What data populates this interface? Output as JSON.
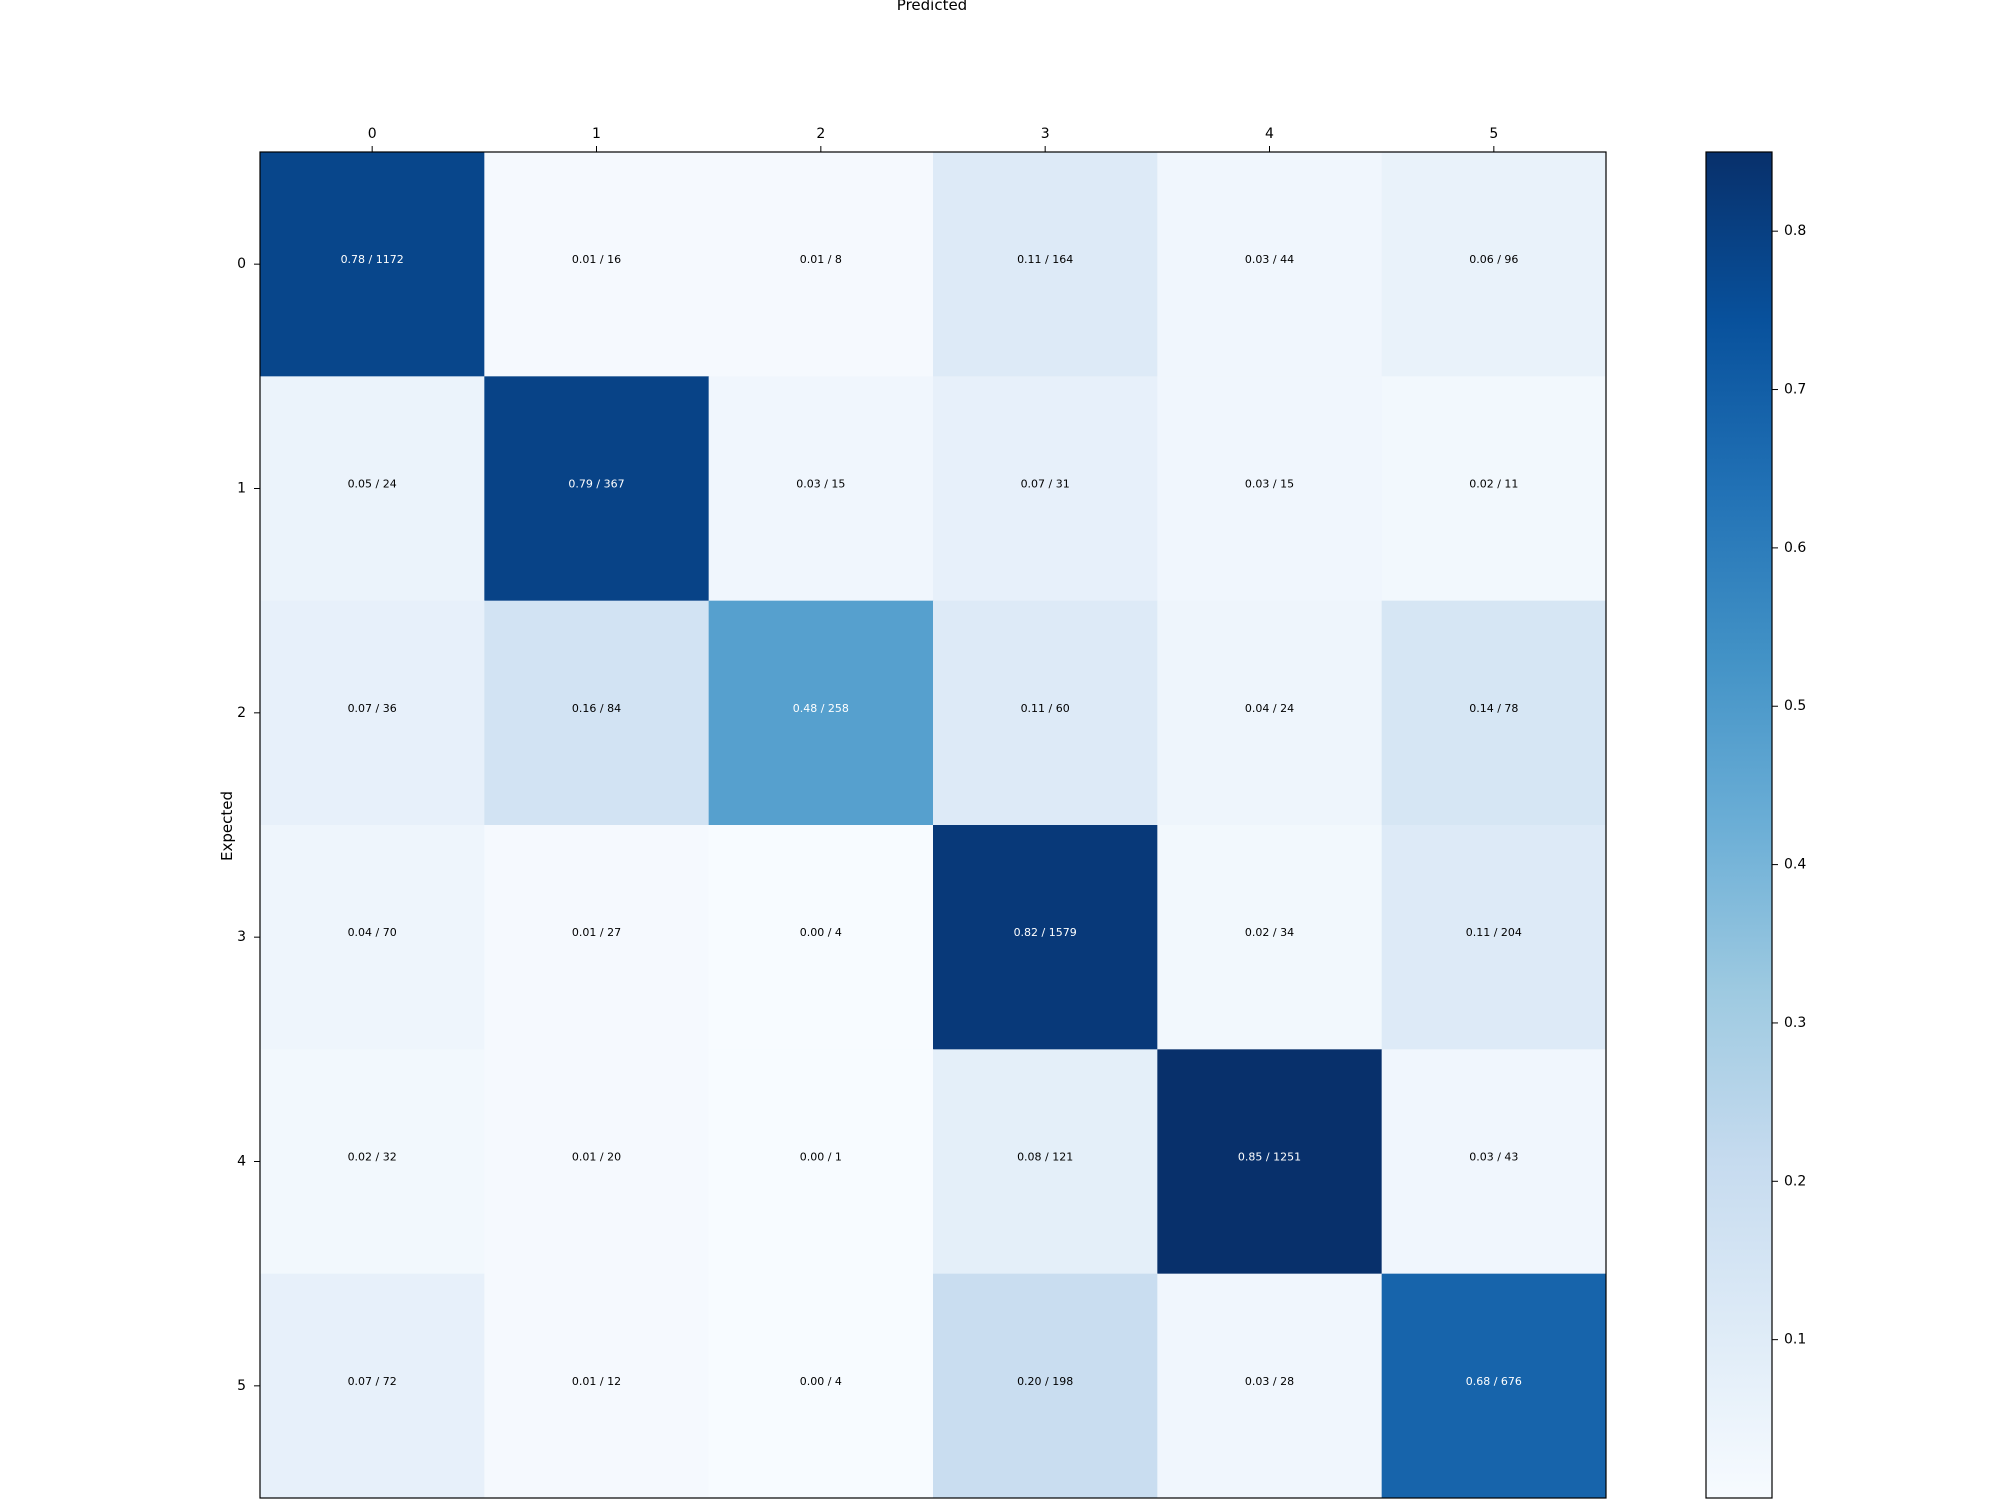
{
  "chart_data": {
    "type": "heatmap",
    "title": "",
    "xlabel": "Predicted",
    "ylabel": "Expected",
    "x_categories": [
      "0",
      "1",
      "2",
      "3",
      "4",
      "5"
    ],
    "y_categories": [
      "0",
      "1",
      "2",
      "3",
      "4",
      "5"
    ],
    "x_axis_position": "top",
    "cells": [
      [
        {
          "v": 0.78,
          "label": "0.78 / 1172"
        },
        {
          "v": 0.01,
          "label": "0.01 / 16"
        },
        {
          "v": 0.01,
          "label": "0.01 / 8"
        },
        {
          "v": 0.11,
          "label": "0.11 / 164"
        },
        {
          "v": 0.03,
          "label": "0.03 / 44"
        },
        {
          "v": 0.06,
          "label": "0.06 / 96"
        }
      ],
      [
        {
          "v": 0.05,
          "label": "0.05 / 24"
        },
        {
          "v": 0.79,
          "label": "0.79 / 367"
        },
        {
          "v": 0.03,
          "label": "0.03 / 15"
        },
        {
          "v": 0.07,
          "label": "0.07 / 31"
        },
        {
          "v": 0.03,
          "label": "0.03 / 15"
        },
        {
          "v": 0.02,
          "label": "0.02 / 11"
        }
      ],
      [
        {
          "v": 0.07,
          "label": "0.07 / 36"
        },
        {
          "v": 0.16,
          "label": "0.16 / 84"
        },
        {
          "v": 0.48,
          "label": "0.48 / 258"
        },
        {
          "v": 0.11,
          "label": "0.11 / 60"
        },
        {
          "v": 0.04,
          "label": "0.04 / 24"
        },
        {
          "v": 0.14,
          "label": "0.14 / 78"
        }
      ],
      [
        {
          "v": 0.04,
          "label": "0.04 / 70"
        },
        {
          "v": 0.01,
          "label": "0.01 / 27"
        },
        {
          "v": 0.0,
          "label": "0.00 / 4"
        },
        {
          "v": 0.82,
          "label": "0.82 / 1579"
        },
        {
          "v": 0.02,
          "label": "0.02 / 34"
        },
        {
          "v": 0.11,
          "label": "0.11 / 204"
        }
      ],
      [
        {
          "v": 0.02,
          "label": "0.02 / 32"
        },
        {
          "v": 0.01,
          "label": "0.01 / 20"
        },
        {
          "v": 0.0,
          "label": "0.00 / 1"
        },
        {
          "v": 0.08,
          "label": "0.08 / 121"
        },
        {
          "v": 0.85,
          "label": "0.85 / 1251"
        },
        {
          "v": 0.03,
          "label": "0.03 / 43"
        }
      ],
      [
        {
          "v": 0.07,
          "label": "0.07 / 72"
        },
        {
          "v": 0.01,
          "label": "0.01 / 12"
        },
        {
          "v": 0.0,
          "label": "0.00 / 4"
        },
        {
          "v": 0.2,
          "label": "0.20 / 198"
        },
        {
          "v": 0.03,
          "label": "0.03 / 28"
        },
        {
          "v": 0.68,
          "label": "0.68 / 676"
        }
      ]
    ],
    "colormap": "Blues",
    "colorbar": {
      "min": 0.0,
      "max": 0.85,
      "ticks": [
        0.1,
        0.2,
        0.3,
        0.4,
        0.5,
        0.6,
        0.7,
        0.8
      ],
      "tick_labels": [
        "0.1",
        "0.2",
        "0.3",
        "0.4",
        "0.5",
        "0.6",
        "0.7",
        "0.8"
      ]
    },
    "grid": false
  }
}
